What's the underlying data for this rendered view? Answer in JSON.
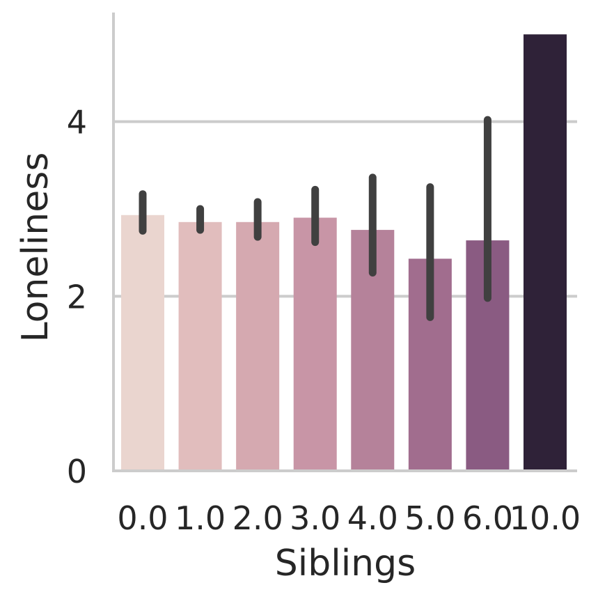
{
  "chart_data": {
    "type": "bar",
    "xlabel": "Siblings",
    "ylabel": "Loneliness",
    "categories": [
      "0.0",
      "1.0",
      "2.0",
      "3.0",
      "4.0",
      "5.0",
      "6.0",
      "10.0"
    ],
    "values": [
      2.93,
      2.85,
      2.85,
      2.9,
      2.76,
      2.43,
      2.64,
      5.0
    ],
    "error_bars": [
      [
        2.75,
        3.17
      ],
      [
        2.76,
        3.0
      ],
      [
        2.68,
        3.08
      ],
      [
        2.62,
        3.22
      ],
      [
        2.27,
        3.36
      ],
      [
        1.76,
        3.25
      ],
      [
        1.98,
        4.02
      ],
      null
    ],
    "colors": [
      "#ead5cf",
      "#e1bdbd",
      "#d5a9b0",
      "#c895a6",
      "#b5829a",
      "#a16d8e",
      "#8a5b82",
      "#2f2238"
    ],
    "yticks": [
      0,
      2,
      4
    ],
    "ylim": [
      0,
      5.25
    ],
    "grid": "horizontal",
    "error_bar_color": "#404040"
  }
}
